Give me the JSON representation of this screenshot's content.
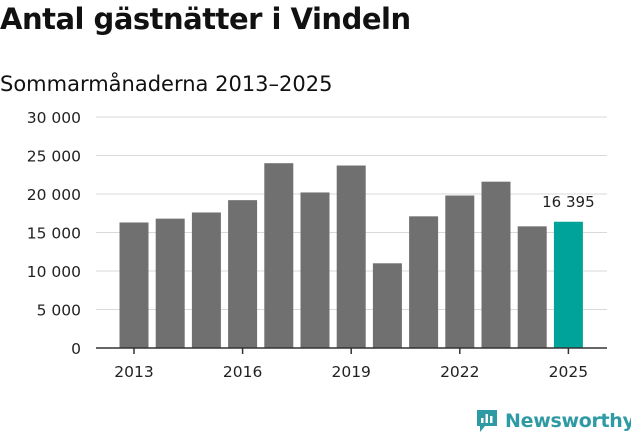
{
  "header": {
    "title": "Antal gästnätter i Vindeln",
    "subtitle": "Sommarmånaderna 2013–2025"
  },
  "brand": {
    "name": "Newsworthy"
  },
  "colors": {
    "bar": "#707070",
    "highlight": "#00a39a",
    "grid": "#d9d9d9",
    "axis": "#333333",
    "brand": "#2e9aa3"
  },
  "chart_data": {
    "type": "bar",
    "categories": [
      "2013",
      "2014",
      "2015",
      "2016",
      "2017",
      "2018",
      "2019",
      "2020",
      "2021",
      "2022",
      "2023",
      "2024",
      "2025"
    ],
    "values": [
      16300,
      16800,
      17600,
      19200,
      24000,
      20200,
      23700,
      11000,
      17100,
      19800,
      21600,
      15800,
      16395
    ],
    "highlight_index": 12,
    "highlight_label": "16 395",
    "ylim": [
      0,
      30000
    ],
    "yticks": [
      0,
      5000,
      10000,
      15000,
      20000,
      25000,
      30000
    ],
    "ytick_labels": [
      "0",
      "5 000",
      "10 000",
      "15 000",
      "20 000",
      "25 000",
      "30 000"
    ],
    "xtick_labels": [
      "2013",
      "2016",
      "2019",
      "2022",
      "2025"
    ],
    "grid": true,
    "legend": "none"
  }
}
